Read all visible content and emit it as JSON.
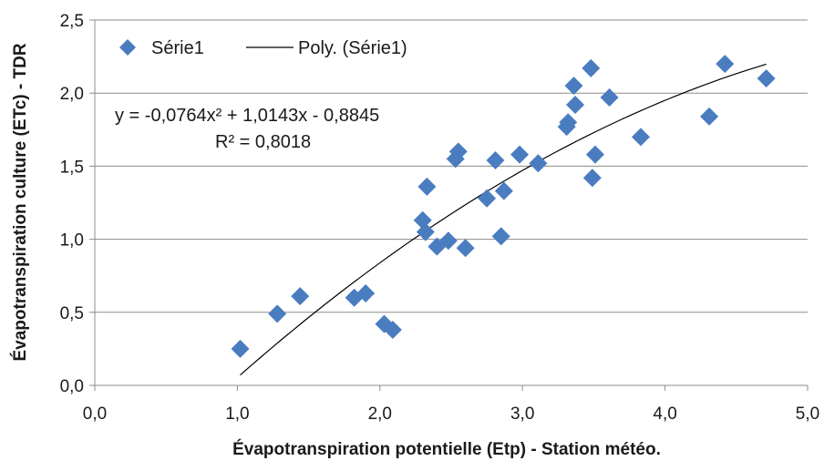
{
  "chart_data": {
    "type": "scatter",
    "xlabel": "Évapotranspiration  potentielle (Etp) - Station météo.",
    "ylabel": "Évapotranspiration  culture (ETc) - TDR",
    "xlim": [
      0,
      5
    ],
    "ylim": [
      0,
      2.5
    ],
    "x_ticks": [
      "0,0",
      "1,0",
      "2,0",
      "3,0",
      "4,0",
      "5,0"
    ],
    "y_ticks": [
      "0,0",
      "0,5",
      "1,0",
      "1,5",
      "2,0",
      "2,5"
    ],
    "grid": "horizontal",
    "legend_position": "top-left",
    "colors": {
      "marker": "#4a7cc0",
      "trendline": "#000000",
      "grid": "#8c8c8c"
    },
    "series": [
      {
        "name": "Série1",
        "marker": "diamond",
        "points": [
          [
            1.02,
            0.25
          ],
          [
            1.28,
            0.49
          ],
          [
            1.44,
            0.61
          ],
          [
            1.82,
            0.6
          ],
          [
            1.9,
            0.63
          ],
          [
            2.03,
            0.42
          ],
          [
            2.09,
            0.38
          ],
          [
            2.3,
            1.13
          ],
          [
            2.32,
            1.05
          ],
          [
            2.33,
            1.36
          ],
          [
            2.4,
            0.95
          ],
          [
            2.48,
            0.99
          ],
          [
            2.53,
            1.55
          ],
          [
            2.55,
            1.6
          ],
          [
            2.6,
            0.94
          ],
          [
            2.75,
            1.28
          ],
          [
            2.81,
            1.54
          ],
          [
            2.85,
            1.02
          ],
          [
            2.87,
            1.33
          ],
          [
            2.98,
            1.58
          ],
          [
            3.11,
            1.52
          ],
          [
            3.31,
            1.77
          ],
          [
            3.32,
            1.8
          ],
          [
            3.36,
            2.05
          ],
          [
            3.37,
            1.92
          ],
          [
            3.48,
            2.17
          ],
          [
            3.49,
            1.42
          ],
          [
            3.51,
            1.58
          ],
          [
            3.61,
            1.97
          ],
          [
            3.83,
            1.7
          ],
          [
            4.31,
            1.84
          ],
          [
            4.42,
            2.2
          ],
          [
            4.71,
            2.1
          ]
        ]
      }
    ],
    "trendline": {
      "name": "Poly. (Série1)",
      "type": "polynomial",
      "coefficients": {
        "a": -0.0764,
        "b": 1.0143,
        "c": -0.8845
      },
      "x_range": [
        1.02,
        4.71
      ],
      "equation": "y = -0,0764x² + 1,0143x - 0,8845",
      "r_squared": "R² = 0,8018"
    }
  }
}
